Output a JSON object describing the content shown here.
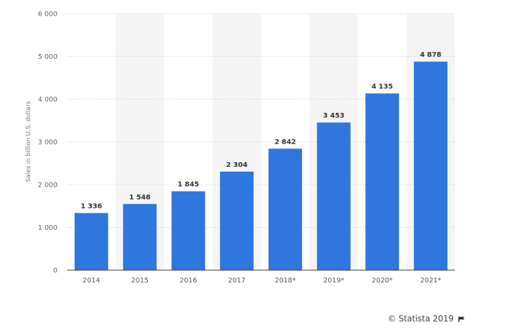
{
  "chart_data": {
    "type": "bar",
    "categories": [
      "2014",
      "2015",
      "2016",
      "2017",
      "2018*",
      "2019*",
      "2020*",
      "2021*"
    ],
    "values": [
      1336,
      1548,
      1845,
      2304,
      2842,
      3453,
      4135,
      4878
    ],
    "value_labels": [
      "1 336",
      "1 548",
      "1 845",
      "2 304",
      "2 842",
      "3 453",
      "4 135",
      "4 878"
    ],
    "title": "",
    "xlabel": "",
    "ylabel": "Sales in billion U.S. dollars",
    "ylim": [
      0,
      6000
    ],
    "yticks": [
      0,
      1000,
      2000,
      3000,
      4000,
      5000,
      6000
    ],
    "ytick_labels": [
      "0",
      "1 000",
      "2 000",
      "3 000",
      "4 000",
      "5 000",
      "6 000"
    ],
    "grid": true,
    "bar_color": "#2f77dc",
    "alt_column_shading": "#f5f5f5"
  },
  "footer": {
    "credit": "© Statista 2019"
  }
}
